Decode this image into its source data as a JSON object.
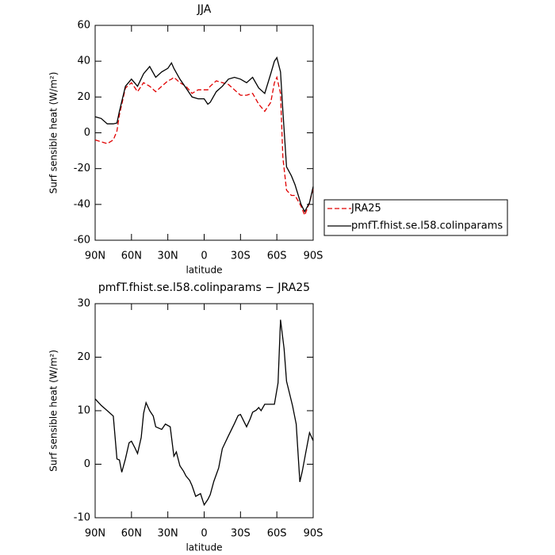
{
  "chart_data": [
    {
      "type": "line",
      "title": "JJA",
      "xlabel": "latitude",
      "ylabel": "Surf sensible heat (W/m²)",
      "x": [
        90,
        85,
        80,
        75,
        72,
        70,
        65,
        60,
        55,
        50,
        45,
        40,
        35,
        30,
        27,
        25,
        20,
        15,
        10,
        5,
        0,
        -3,
        -5,
        -10,
        -15,
        -20,
        -25,
        -30,
        -35,
        -40,
        -45,
        -50,
        -55,
        -58,
        -60,
        -63,
        -65,
        -68,
        -72,
        -75,
        -80,
        -83,
        -87,
        -90
      ],
      "series": [
        {
          "name": "JRA25",
          "color": "#e00000",
          "style": "dashed",
          "values": [
            -4,
            -5,
            -6,
            -4,
            1,
            10,
            25,
            28,
            23,
            28,
            26,
            23,
            26,
            29,
            30,
            31,
            28,
            26,
            22,
            24,
            24,
            24,
            26,
            29,
            28,
            27,
            24,
            21,
            21,
            22,
            16,
            12,
            17,
            28,
            31,
            22,
            -14,
            -32,
            -35,
            -35,
            -41,
            -46,
            -39,
            -31
          ]
        },
        {
          "name": "pmfT.fhist.se.l58.colinparams",
          "color": "#000000",
          "style": "solid",
          "values": [
            9,
            8,
            5,
            5,
            5.5,
            12,
            26,
            30,
            26,
            33,
            37,
            31,
            34,
            36,
            39,
            36,
            30,
            25,
            20,
            19,
            19,
            16,
            17,
            23,
            26,
            30,
            31,
            30,
            28,
            31,
            25,
            22,
            33,
            40,
            42,
            34,
            12,
            -19,
            -24,
            -29,
            -40,
            -44,
            -39,
            -30
          ]
        }
      ],
      "xlim": [
        90,
        -90
      ],
      "xticks": [
        {
          "value": 90,
          "label": "90N"
        },
        {
          "value": 60,
          "label": "60N"
        },
        {
          "value": 30,
          "label": "30N"
        },
        0,
        {
          "value": -30,
          "label": "30S"
        },
        {
          "value": -60,
          "label": "60S"
        },
        {
          "value": -90,
          "label": "90S"
        }
      ],
      "ylim": [
        -60,
        60
      ],
      "yticks": [
        -60,
        -40,
        -20,
        0,
        20,
        40,
        60
      ],
      "legend": "outside-right"
    },
    {
      "type": "line",
      "title": "pmfT.fhist.se.l58.colinparams − JRA25",
      "xlabel": "latitude",
      "ylabel": "Surf sensible heat (W/m²)",
      "x": [
        90,
        85,
        80,
        75,
        72,
        70,
        68,
        65,
        62,
        60,
        57,
        55,
        52,
        50,
        48,
        45,
        42,
        40,
        35,
        32,
        28,
        25,
        23,
        20,
        17,
        15,
        12,
        10,
        7,
        3,
        0,
        -3,
        -5,
        -8,
        -12,
        -15,
        -20,
        -25,
        -28,
        -30,
        -35,
        -38,
        -40,
        -43,
        -45,
        -47,
        -50,
        -55,
        -58,
        -61,
        -63,
        -66,
        -68,
        -70,
        -73,
        -76,
        -79,
        -81,
        -84,
        -87,
        -90
      ],
      "series": [
        {
          "color": "#000000",
          "style": "solid",
          "values": [
            12.2,
            11,
            10,
            9,
            1,
            0.8,
            -1.5,
            1,
            4,
            4.3,
            3,
            2,
            5,
            9.5,
            11.5,
            10,
            9,
            7,
            6.5,
            7.5,
            7,
            1.5,
            2.3,
            -0.3,
            -1.3,
            -2.2,
            -3,
            -4,
            -6,
            -5.5,
            -7.6,
            -6.6,
            -5.7,
            -3.2,
            -0.7,
            2.9,
            5.3,
            7.6,
            9.1,
            9.3,
            7,
            8.5,
            9.7,
            10.1,
            10.6,
            10,
            11.2,
            11.2,
            11.2,
            15.2,
            27,
            21.6,
            15.5,
            13.7,
            10.9,
            7.5,
            -3.3,
            -1.3,
            2.3,
            5.9,
            4.4
          ]
        }
      ],
      "xlim": [
        90,
        -90
      ],
      "xticks": [
        {
          "value": 90,
          "label": "90N"
        },
        {
          "value": 60,
          "label": "60N"
        },
        {
          "value": 30,
          "label": "30N"
        },
        0,
        {
          "value": -30,
          "label": "30S"
        },
        {
          "value": -60,
          "label": "60S"
        },
        {
          "value": -90,
          "label": "90S"
        }
      ],
      "ylim": [
        -10,
        30
      ],
      "yticks": [
        -10,
        0,
        10,
        20,
        30
      ]
    }
  ]
}
